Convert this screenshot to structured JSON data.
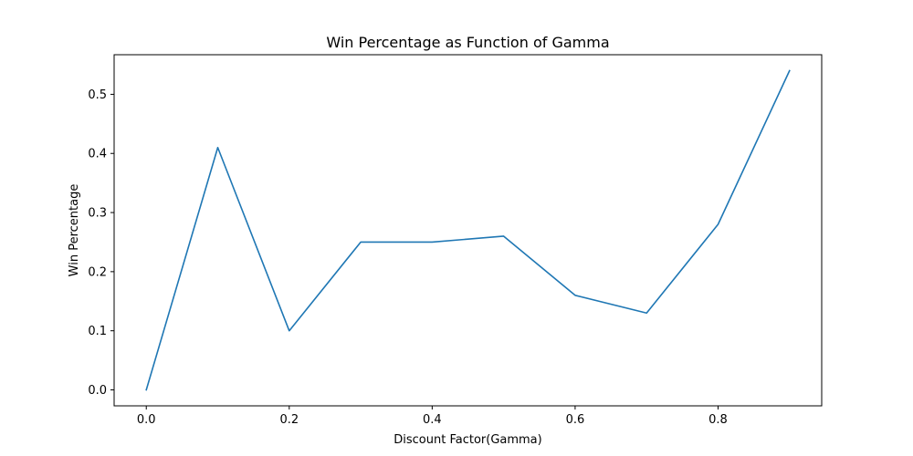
{
  "chart_data": {
    "type": "line",
    "title": "Win Percentage as Function of Gamma",
    "xlabel": "Discount Factor(Gamma)",
    "ylabel": "Win Percentage",
    "x": [
      0.0,
      0.1,
      0.2,
      0.3,
      0.4,
      0.5,
      0.6,
      0.7,
      0.8,
      0.9
    ],
    "series": [
      {
        "values": [
          0.0,
          0.41,
          0.1,
          0.25,
          0.25,
          0.26,
          0.16,
          0.13,
          0.28,
          0.54
        ],
        "color": "#1f77b4"
      }
    ],
    "xlim": [
      -0.045,
      0.945
    ],
    "ylim": [
      -0.027,
      0.567
    ],
    "xticks": [
      {
        "value": 0.0,
        "label": "0.0"
      },
      {
        "value": 0.2,
        "label": "0.2"
      },
      {
        "value": 0.4,
        "label": "0.4"
      },
      {
        "value": 0.6,
        "label": "0.6"
      },
      {
        "value": 0.8,
        "label": "0.8"
      }
    ],
    "yticks": [
      {
        "value": 0.0,
        "label": "0.0"
      },
      {
        "value": 0.1,
        "label": "0.1"
      },
      {
        "value": 0.2,
        "label": "0.2"
      },
      {
        "value": 0.3,
        "label": "0.3"
      },
      {
        "value": 0.4,
        "label": "0.4"
      },
      {
        "value": 0.5,
        "label": "0.5"
      }
    ],
    "grid": false,
    "legend": "none"
  }
}
